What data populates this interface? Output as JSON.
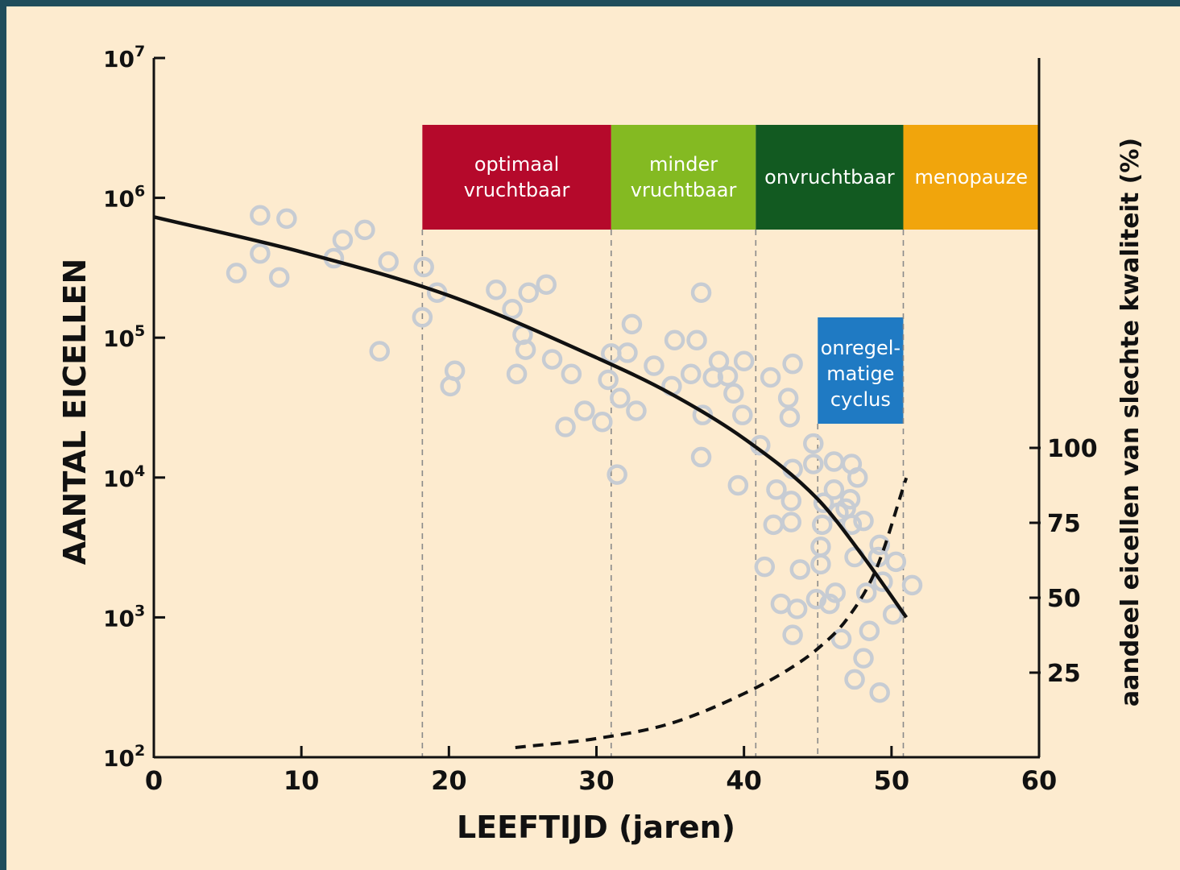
{
  "chart_data": {
    "type": "scatter",
    "title": "",
    "xlabel": "LEEFTIJD (jaren)",
    "ylabel": "AANTAL EICELLEN",
    "y2label": "aandeel eicellen van slechte kwaliteit (%)",
    "xlim": [
      0,
      60
    ],
    "ylim": [
      100,
      10000000
    ],
    "yscale": "log",
    "y2lim": [
      0,
      100
    ],
    "grid": false,
    "x_ticks": [
      "0",
      "10",
      "20",
      "30",
      "40",
      "50",
      "60"
    ],
    "y_ticks": [
      {
        "base": "10",
        "exp": "7"
      },
      {
        "base": "10",
        "exp": "6"
      },
      {
        "base": "10",
        "exp": "5"
      },
      {
        "base": "10",
        "exp": "4"
      },
      {
        "base": "10",
        "exp": "3"
      },
      {
        "base": "10",
        "exp": "2"
      }
    ],
    "y2_ticks": [
      "100",
      "75",
      "50",
      "25"
    ],
    "phases": [
      {
        "lines": [
          "optimaal",
          "vruchtbaar"
        ],
        "start": 18.2,
        "end": 31,
        "color": "#b5092b"
      },
      {
        "lines": [
          "minder",
          "vruchtbaar"
        ],
        "start": 31,
        "end": 40.8,
        "color": "#84ba22"
      },
      {
        "lines": [
          "onvruchtbaar"
        ],
        "start": 40.8,
        "end": 50.8,
        "color": "#125a21"
      },
      {
        "lines": [
          "menopauze"
        ],
        "start": 50.8,
        "end": 60,
        "color": "#f1a50c"
      }
    ],
    "irregular": {
      "lines": [
        "onregel-",
        "matige",
        "cyclus"
      ],
      "start": 45,
      "end": 50.8,
      "color": "#1f7ac3"
    },
    "phase_boundaries": [
      18.2,
      31,
      40.8,
      45,
      50.8
    ],
    "series": [
      {
        "type": "scatter",
        "color": "#c7ccd3",
        "points": [
          [
            5.6,
            290000
          ],
          [
            7.2,
            750000
          ],
          [
            7.2,
            400000
          ],
          [
            8.5,
            270000
          ],
          [
            9,
            710000
          ],
          [
            12.2,
            370000
          ],
          [
            12.8,
            500000
          ],
          [
            14.3,
            590000
          ],
          [
            15.3,
            80000
          ],
          [
            15.9,
            350000
          ],
          [
            18.2,
            140000
          ],
          [
            18.3,
            320000
          ],
          [
            19.2,
            210000
          ],
          [
            20.1,
            45000
          ],
          [
            20.4,
            58000
          ],
          [
            23.2,
            220000
          ],
          [
            24.3,
            160000
          ],
          [
            24.6,
            55000
          ],
          [
            25,
            105000
          ],
          [
            25.2,
            82000
          ],
          [
            25.4,
            210000
          ],
          [
            26.6,
            240000
          ],
          [
            27,
            70000
          ],
          [
            27.9,
            23000
          ],
          [
            28.3,
            55000
          ],
          [
            29.2,
            30000
          ],
          [
            30.4,
            25000
          ],
          [
            30.8,
            50000
          ],
          [
            31,
            77000
          ],
          [
            31.4,
            10500
          ],
          [
            31.6,
            37000
          ],
          [
            32.1,
            78000
          ],
          [
            32.4,
            125000
          ],
          [
            32.7,
            30000
          ],
          [
            33.9,
            63000
          ],
          [
            35.1,
            45000
          ],
          [
            35.3,
            96000
          ],
          [
            36.4,
            55000
          ],
          [
            36.8,
            96000
          ],
          [
            37.1,
            210000
          ],
          [
            37.1,
            14000
          ],
          [
            37.2,
            28000
          ],
          [
            37.9,
            52000
          ],
          [
            38.3,
            68000
          ],
          [
            38.9,
            53000
          ],
          [
            39.3,
            40000
          ],
          [
            39.6,
            8800
          ],
          [
            39.9,
            28000
          ],
          [
            40,
            68000
          ],
          [
            41.1,
            17000
          ],
          [
            41.4,
            2300
          ],
          [
            41.8,
            52000
          ],
          [
            42,
            4600
          ],
          [
            42.2,
            8200
          ],
          [
            42.5,
            1250
          ],
          [
            43,
            37000
          ],
          [
            43.1,
            27000
          ],
          [
            43.2,
            4800
          ],
          [
            43.2,
            6800
          ],
          [
            43.3,
            65000
          ],
          [
            43.3,
            11500
          ],
          [
            43.3,
            750
          ],
          [
            43.6,
            1150
          ],
          [
            43.8,
            2200
          ],
          [
            44.7,
            12500
          ],
          [
            44.7,
            17500
          ],
          [
            44.9,
            1350
          ],
          [
            45.2,
            2400
          ],
          [
            45.2,
            3200
          ],
          [
            45.3,
            4600
          ],
          [
            45.4,
            6600
          ],
          [
            45.8,
            1250
          ],
          [
            46.1,
            8200
          ],
          [
            46.1,
            13000
          ],
          [
            46.2,
            1500
          ],
          [
            46.4,
            5600
          ],
          [
            46.6,
            700
          ],
          [
            46.9,
            6000
          ],
          [
            47.2,
            7000
          ],
          [
            47.3,
            12500
          ],
          [
            47.3,
            4600
          ],
          [
            47.5,
            360
          ],
          [
            47.5,
            2700
          ],
          [
            47.7,
            10000
          ],
          [
            48.1,
            4900
          ],
          [
            48.1,
            510
          ],
          [
            48.3,
            1500
          ],
          [
            48.5,
            800
          ],
          [
            49.1,
            2700
          ],
          [
            49.2,
            3300
          ],
          [
            49.2,
            290
          ],
          [
            49.4,
            1800
          ],
          [
            50.1,
            1050
          ],
          [
            50.3,
            2500
          ],
          [
            51.4,
            1700
          ]
        ]
      },
      {
        "type": "line",
        "style": "solid",
        "axis": "left",
        "color": "#111111",
        "x": [
          0,
          10,
          20,
          30,
          35,
          40,
          45,
          48,
          51
        ],
        "y": [
          730000,
          410000,
          200000,
          72000,
          40000,
          19000,
          7000,
          2800,
          1000
        ]
      },
      {
        "type": "line",
        "style": "dashed",
        "axis": "right",
        "color": "#111111",
        "x": [
          24.5,
          30,
          35,
          40,
          43,
          45,
          47,
          49,
          51
        ],
        "y": [
          0,
          3,
          8,
          18,
          26,
          33,
          43,
          60,
          90
        ]
      }
    ]
  }
}
